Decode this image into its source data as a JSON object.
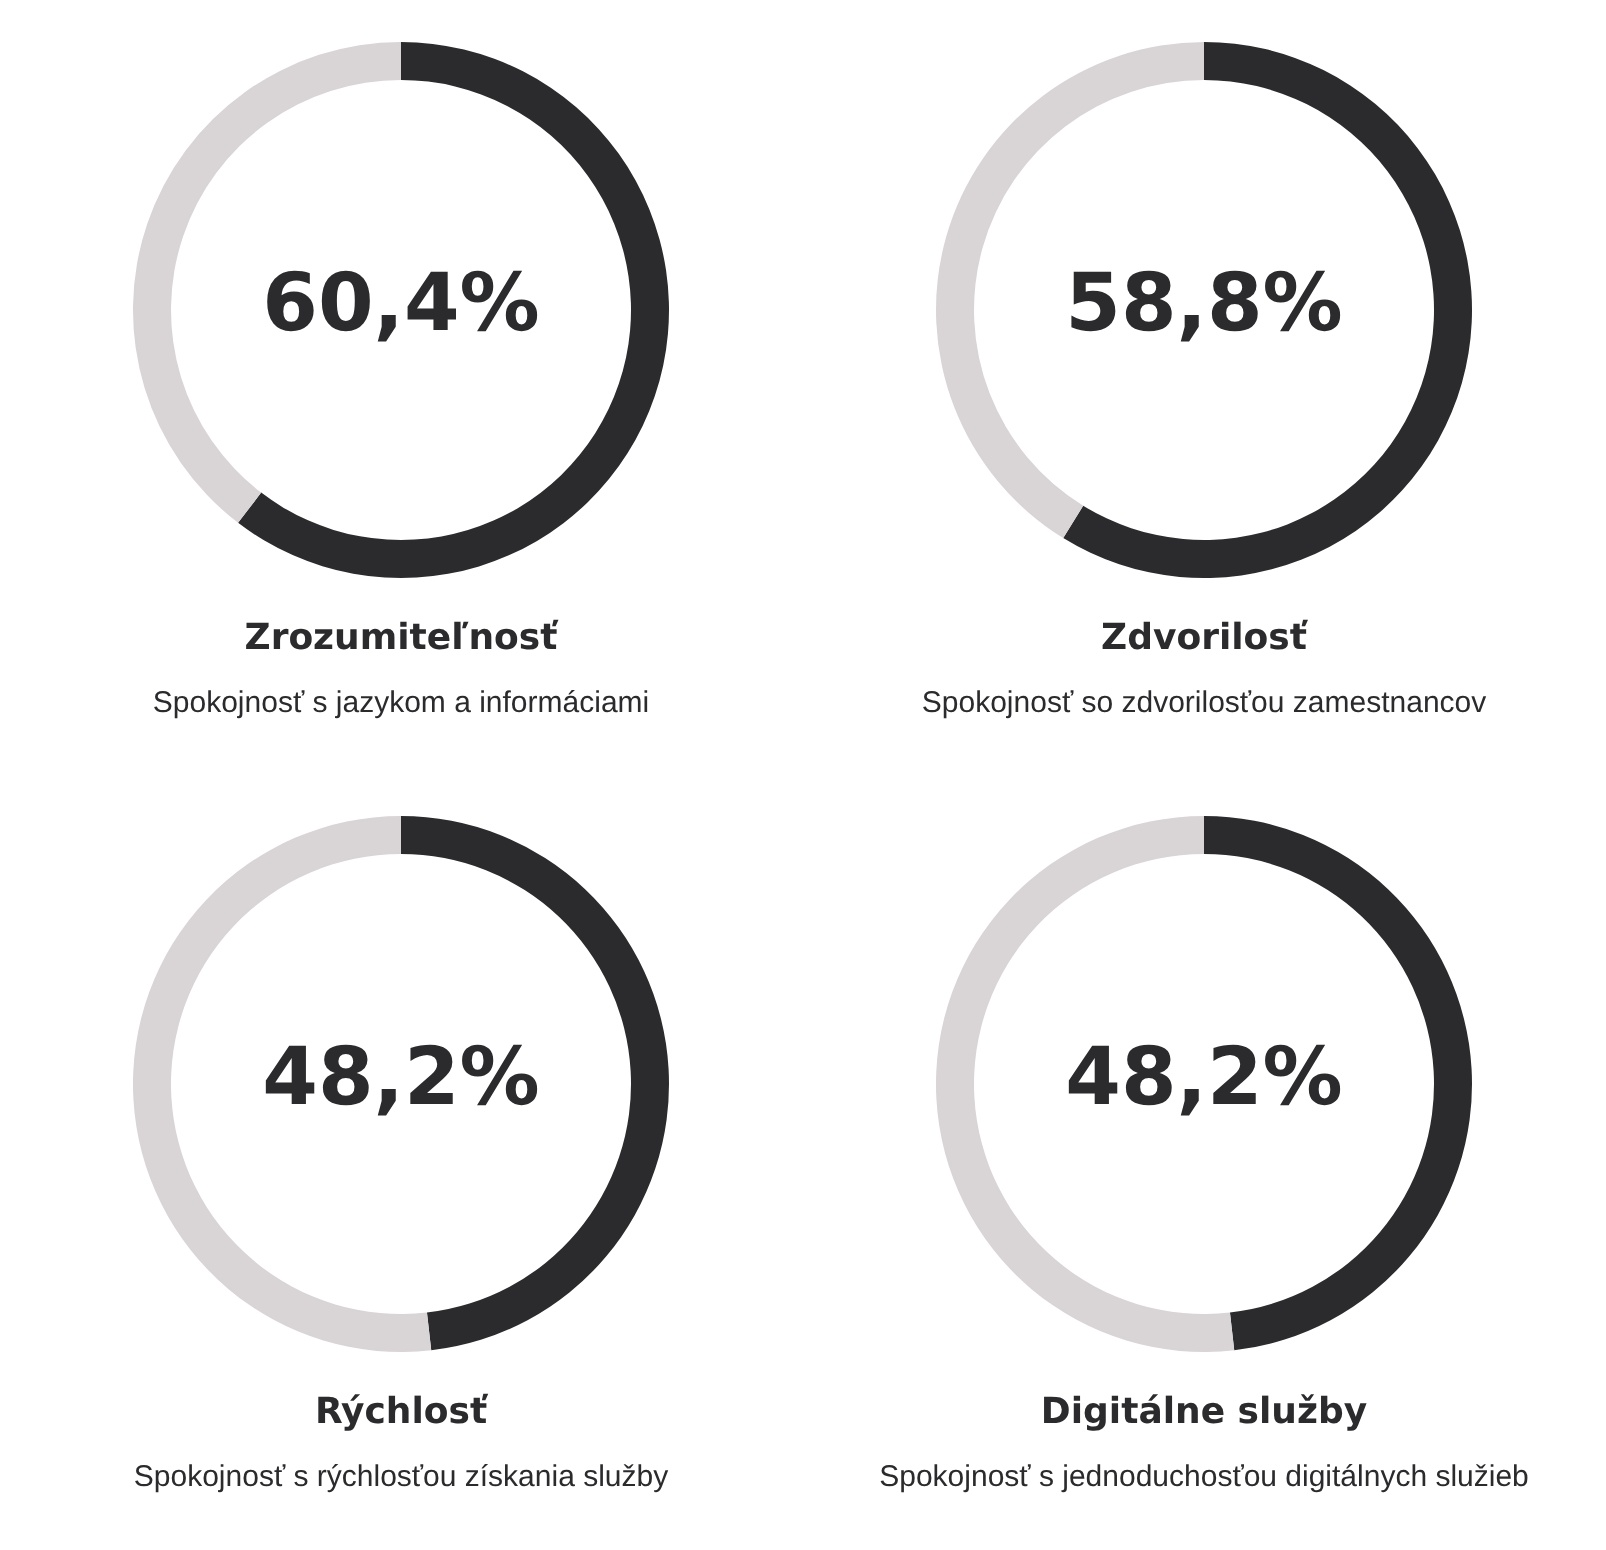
{
  "chart_data": [
    {
      "type": "donut",
      "title": "Zrozumiteľnosť",
      "subtitle": "Spokojnosť s jazykom a informáciami",
      "categories": [
        null,
        null
      ],
      "values": [
        60.4,
        39.6
      ],
      "colors": [
        "#2b2a2d",
        "#d9d4d6"
      ],
      "annotations": [
        "60,4%"
      ]
    },
    {
      "type": "donut",
      "title": "Zdvorilosť",
      "subtitle": "Spokojnosť so zdvorilosťou zamestnancov",
      "categories": [
        null,
        null
      ],
      "values": [
        58.8,
        41.2
      ],
      "colors": [
        "#2b2a2d",
        "#d9d4d6"
      ],
      "annotations": [
        "58,8%"
      ]
    },
    {
      "type": "donut",
      "title": "Rýchlosť",
      "subtitle": "Spokojnosť s rýchlosťou získania služby",
      "categories": [
        null,
        null
      ],
      "values": [
        48.2,
        51.8
      ],
      "colors": [
        "#2b2a2d",
        "#d9d4d6"
      ],
      "annotations": [
        "48,2%"
      ]
    },
    {
      "type": "donut",
      "title": "Digitálne služby",
      "subtitle": "Spokojnosť s jednoduchosťou digitálnych služieb",
      "categories": [
        null,
        null
      ],
      "values": [
        48.2,
        51.8
      ],
      "colors": [
        "#2b2a2d",
        "#d9d4d6"
      ],
      "annotations": [
        "48,2%"
      ]
    }
  ]
}
